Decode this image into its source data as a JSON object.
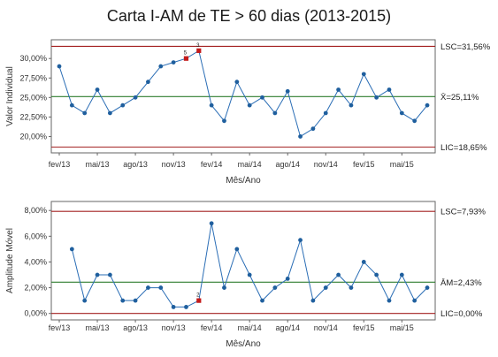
{
  "title": "Carta I-AM de TE > 60 dias (2013-2015)",
  "chart_data": [
    {
      "type": "line",
      "name": "individual-chart",
      "xlabel": "Mês/Ano",
      "ylabel": "Valor Individual",
      "x_ticks": [
        {
          "label": "fev/13",
          "index": 0
        },
        {
          "label": "mai/13",
          "index": 3
        },
        {
          "label": "ago/13",
          "index": 6
        },
        {
          "label": "nov/13",
          "index": 9
        },
        {
          "label": "fev/14",
          "index": 12
        },
        {
          "label": "mai/14",
          "index": 15
        },
        {
          "label": "ago/14",
          "index": 18
        },
        {
          "label": "nov/14",
          "index": 21
        },
        {
          "label": "fev/15",
          "index": 24
        },
        {
          "label": "mai/15",
          "index": 27
        }
      ],
      "y_ticks": [
        "20,00%",
        "22,50%",
        "25,00%",
        "27,50%",
        "30,00%"
      ],
      "y_tick_values": [
        20.0,
        22.5,
        25.0,
        27.5,
        30.0
      ],
      "ylim": [
        17.9,
        32.4
      ],
      "values": [
        29.0,
        24.0,
        23.0,
        26.0,
        23.0,
        24.0,
        25.0,
        27.0,
        29.0,
        29.5,
        30.0,
        31.0,
        24.0,
        22.0,
        27.0,
        24.0,
        25.0,
        23.0,
        25.8,
        20.0,
        21.0,
        23.0,
        26.0,
        24.0,
        28.0,
        25.0,
        26.0,
        23.0,
        22.0,
        24.0
      ],
      "flagged": [
        {
          "index": 10,
          "label": "5"
        },
        {
          "index": 11,
          "label": "3"
        }
      ],
      "limits": [
        {
          "name": "LSC",
          "value": 31.56,
          "label": "LSC=31,56%",
          "color": "#a32020"
        },
        {
          "name": "center",
          "value": 25.11,
          "label": "X̄=25,11%",
          "color": "#2e7d2e"
        },
        {
          "name": "LIC",
          "value": 18.65,
          "label": "LIC=18,65%",
          "color": "#a32020"
        }
      ]
    },
    {
      "type": "line",
      "name": "moving-range-chart",
      "xlabel": "Mês/Ano",
      "ylabel": "Amplitude Móvel",
      "x_ticks": [
        {
          "label": "fev/13",
          "index": 0
        },
        {
          "label": "mai/13",
          "index": 3
        },
        {
          "label": "ago/13",
          "index": 6
        },
        {
          "label": "nov/13",
          "index": 9
        },
        {
          "label": "fev/14",
          "index": 12
        },
        {
          "label": "mai/14",
          "index": 15
        },
        {
          "label": "ago/14",
          "index": 18
        },
        {
          "label": "nov/14",
          "index": 21
        },
        {
          "label": "fev/15",
          "index": 24
        },
        {
          "label": "mai/15",
          "index": 27
        }
      ],
      "y_ticks": [
        "0,00%",
        "2,00%",
        "4,00%",
        "6,00%",
        "8,00%"
      ],
      "y_tick_values": [
        0,
        2,
        4,
        6,
        8
      ],
      "ylim": [
        -0.5,
        8.7
      ],
      "start_index": 1,
      "values": [
        5.0,
        1.0,
        3.0,
        3.0,
        1.0,
        1.0,
        2.0,
        2.0,
        0.5,
        0.5,
        1.0,
        7.0,
        2.0,
        5.0,
        3.0,
        1.0,
        2.0,
        2.7,
        5.7,
        1.0,
        2.0,
        3.0,
        2.0,
        4.0,
        3.0,
        1.0,
        3.0,
        1.0,
        2.0
      ],
      "flagged": [
        {
          "index": 11,
          "label": "2"
        }
      ],
      "limits": [
        {
          "name": "LSC",
          "value": 7.93,
          "label": "LSC=7,93%",
          "color": "#a32020"
        },
        {
          "name": "center",
          "value": 2.43,
          "label": "ĀM=2,43%",
          "color": "#2e7d2e"
        },
        {
          "name": "LIC",
          "value": 0.0,
          "label": "LIC=0,00%",
          "color": "#a32020"
        }
      ]
    }
  ],
  "colors": {
    "point": "#1f5f9e",
    "line": "#2a6db5",
    "flagged_point": "#c41a1a",
    "frame": "#666666"
  }
}
